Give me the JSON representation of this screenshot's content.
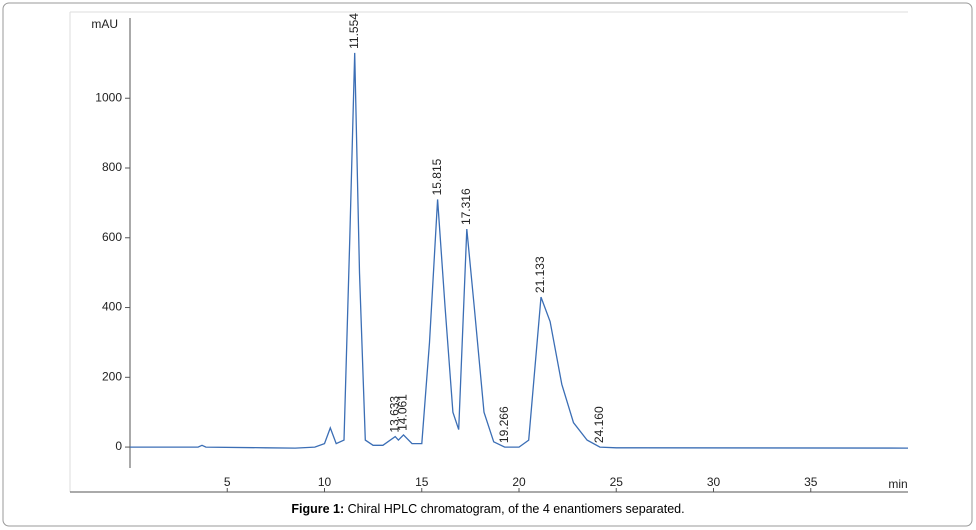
{
  "chart_data": {
    "type": "line",
    "y_label": "mAU",
    "x_label": "min",
    "x": [
      0,
      3.5,
      3.7,
      3.9,
      7,
      8.5,
      9.5,
      10.0,
      10.3,
      10.6,
      11.0,
      11.3,
      11.554,
      11.8,
      12.1,
      12.5,
      13.0,
      13.633,
      13.8,
      14.061,
      14.5,
      15.0,
      15.4,
      15.815,
      16.2,
      16.6,
      16.9,
      17.316,
      17.7,
      18.2,
      18.7,
      19.266,
      20.0,
      20.5,
      21.133,
      21.6,
      22.2,
      22.8,
      23.5,
      24.16,
      25,
      40
    ],
    "series": [
      {
        "name": "trace",
        "color": "#3b6eb5",
        "values": [
          0,
          0,
          5,
          0,
          -2,
          -3,
          0,
          10,
          55,
          10,
          20,
          600,
          1130,
          500,
          20,
          5,
          5,
          30,
          20,
          35,
          10,
          10,
          300,
          710,
          400,
          100,
          50,
          625,
          400,
          100,
          15,
          0,
          0,
          20,
          430,
          360,
          180,
          70,
          20,
          0,
          -2,
          -3
        ]
      }
    ],
    "peak_labels": [
      "11.554",
      "13.633",
      "14.061",
      "15.815",
      "17.316",
      "19.266",
      "21.133",
      "24.160"
    ],
    "xlim": [
      0,
      40
    ],
    "ylim": [
      -60,
      1230
    ],
    "xticks": [
      5,
      10,
      15,
      20,
      25,
      30,
      35
    ],
    "yticks": [
      0,
      200,
      400,
      600,
      800,
      1000
    ],
    "caption": {
      "label": "Figure 1:",
      "text": "Chiral HPLC chromatogram, of the 4 enantiomers separated."
    }
  }
}
